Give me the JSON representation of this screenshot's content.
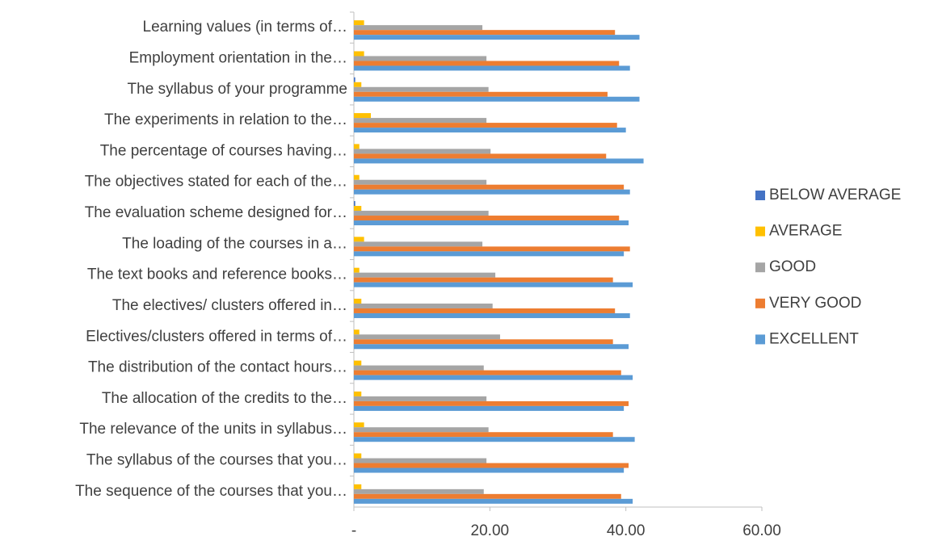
{
  "chart_data": {
    "type": "hbar",
    "categories": [
      "Learning values (in terms of…",
      "Employment orientation in the…",
      "The syllabus of your programme",
      "The experiments in relation to the…",
      "The percentage of courses having…",
      "The objectives stated for each of the…",
      "The evaluation scheme designed for…",
      "The loading of the courses in a…",
      "The text books and reference books…",
      "The electives/ clusters offered in…",
      "Electives/clusters offered in terms of…",
      "The distribution of the contact hours…",
      "The allocation of the credits to the…",
      "The relevance of the units in syllabus…",
      "The syllabus of the courses that you…",
      "The sequence of the courses that you…"
    ],
    "series": [
      {
        "name": "BELOW AVERAGE",
        "color": "#4472c4",
        "values": [
          0,
          0,
          0.2,
          0,
          0,
          0,
          0.2,
          0,
          0,
          0,
          0,
          0,
          0,
          0,
          0,
          0
        ]
      },
      {
        "name": "AVERAGE",
        "color": "#ffc000",
        "values": [
          1.5,
          1.5,
          1.1,
          2.5,
          0.8,
          0.8,
          1.1,
          1.5,
          0.8,
          1.1,
          0.8,
          1.1,
          1.1,
          1.5,
          1.1,
          1.1
        ]
      },
      {
        "name": "GOOD",
        "color": "#a5a5a5",
        "values": [
          18.9,
          19.5,
          19.8,
          19.5,
          20.1,
          19.5,
          19.8,
          18.9,
          20.8,
          20.4,
          21.5,
          19.1,
          19.5,
          19.8,
          19.5,
          19.1
        ]
      },
      {
        "name": "VERY GOOD",
        "color": "#ed7d31",
        "values": [
          38.4,
          39.0,
          37.3,
          38.7,
          37.1,
          39.7,
          39.0,
          40.6,
          38.1,
          38.4,
          38.1,
          39.3,
          40.4,
          38.1,
          40.4,
          39.3
        ]
      },
      {
        "name": "EXCELLENT",
        "color": "#5b9bd5",
        "values": [
          42.0,
          40.6,
          42.0,
          40.0,
          42.6,
          40.6,
          40.4,
          39.7,
          41.0,
          40.6,
          40.4,
          41.0,
          39.7,
          41.3,
          39.7,
          41.0
        ]
      }
    ],
    "xlim": [
      0,
      60
    ],
    "xticks": [
      {
        "value": 0,
        "label": "-"
      },
      {
        "value": 20,
        "label": "20.00"
      },
      {
        "value": 40,
        "label": "40.00"
      },
      {
        "value": 60,
        "label": "60.00"
      }
    ],
    "legend": "right"
  }
}
